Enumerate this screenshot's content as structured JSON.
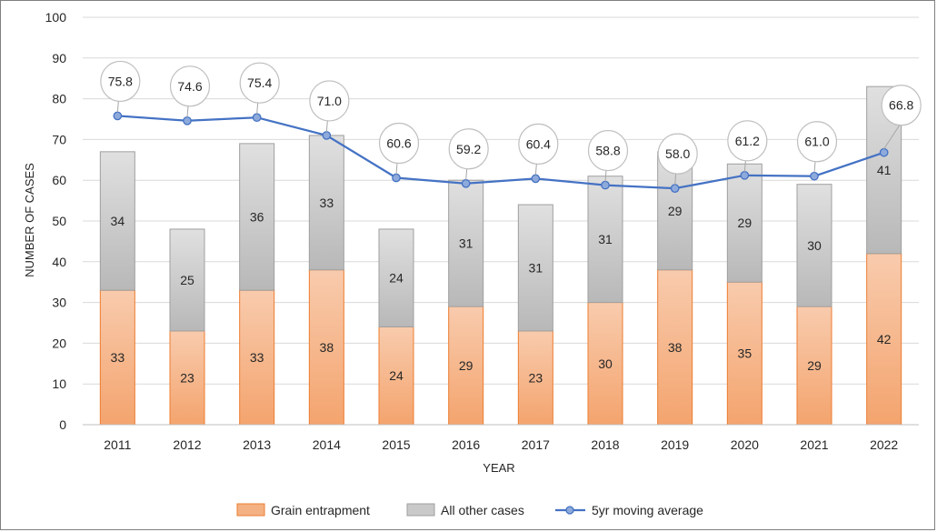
{
  "chart_data": {
    "type": "bar",
    "stacked": true,
    "categories": [
      "2011",
      "2012",
      "2013",
      "2014",
      "2015",
      "2016",
      "2017",
      "2018",
      "2019",
      "2020",
      "2021",
      "2022"
    ],
    "series": [
      {
        "name": "Grain entrapment",
        "type": "bar",
        "values": [
          33,
          23,
          33,
          38,
          24,
          29,
          23,
          30,
          38,
          35,
          29,
          42
        ],
        "color": "#f4b183"
      },
      {
        "name": "All other cases",
        "type": "bar",
        "values": [
          34,
          25,
          36,
          33,
          24,
          31,
          31,
          31,
          29,
          29,
          30,
          41
        ],
        "color": "#c9c9c9"
      },
      {
        "name": "5yr moving average",
        "type": "line",
        "values": [
          75.8,
          74.6,
          75.4,
          71.0,
          60.6,
          59.2,
          60.4,
          58.8,
          58.0,
          61.2,
          61.0,
          66.8
        ],
        "labels": [
          "75.8",
          "74.6",
          "75.4",
          "71.0",
          "60.6",
          "59.2",
          "60.4",
          "58.8",
          "58.0",
          "61.2",
          "61.0",
          "66.8"
        ],
        "color": "#4472c4"
      }
    ],
    "title": "",
    "xlabel": "YEAR",
    "ylabel": "NUMBER OF CASES",
    "ylim": [
      0,
      100
    ],
    "yticks": [
      "0",
      "10",
      "20",
      "30",
      "40",
      "50",
      "60",
      "70",
      "80",
      "90",
      "100"
    ],
    "grid": true,
    "legend": "bottom"
  }
}
